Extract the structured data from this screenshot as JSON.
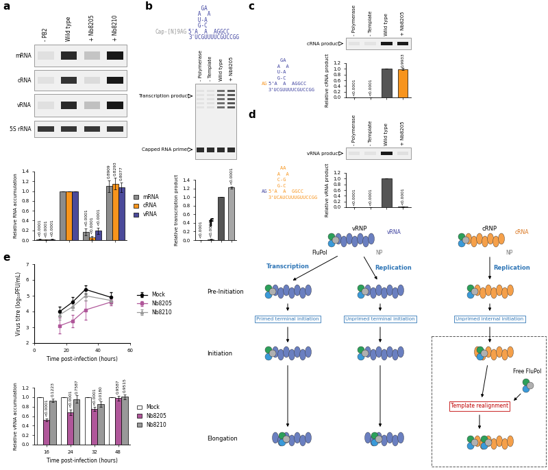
{
  "chart_data": [
    {
      "panel": "a",
      "type": "bar",
      "categories": [
        "- PB2",
        "Wild type",
        "+ Nb8205",
        "+ Nb8210"
      ],
      "gel_rows": [
        "mRNA",
        "cRNA",
        "vRNA",
        "5S rRNA"
      ],
      "ylabel": "Relative RNA accumulation",
      "ylim": [
        0.0,
        1.4
      ],
      "yticks": [
        0.0,
        0.2,
        0.4,
        0.6,
        0.8,
        1.0,
        1.2,
        1.4
      ],
      "tick_labels": "y",
      "legend": "center left",
      "series": [
        {
          "name": "mRNA",
          "color": "#8c8c8c",
          "values": [
            0.02,
            1.0,
            0.17,
            1.1
          ],
          "errors": [
            0.01,
            0.0,
            0.07,
            0.12
          ],
          "p_values": [
            "<0.0001",
            null,
            "<0.0001",
            "0.8909"
          ]
        },
        {
          "name": "cRNA",
          "color": "#f7941d",
          "values": [
            0.01,
            1.0,
            0.05,
            1.15
          ],
          "errors": [
            0.01,
            0.0,
            0.03,
            0.12
          ],
          "p_values": [
            "<0.0001",
            null,
            "<0.0001",
            "0.8293"
          ]
        },
        {
          "name": "vRNA",
          "color": "#4b4a9a",
          "values": [
            0.02,
            1.0,
            0.19,
            1.08
          ],
          "errors": [
            0.01,
            0.0,
            0.06,
            0.1
          ],
          "p_values": [
            "<0.0001",
            null,
            "<0.0001",
            "0.8077"
          ]
        }
      ]
    },
    {
      "panel": "b",
      "type": "bar",
      "categories": [
        "- Polymerase",
        "- Template",
        "Wild type",
        "+ Nb8205"
      ],
      "gel_labels": [
        "Transcription product",
        "Capped RNA primer"
      ],
      "schematic": [
        {
          "text": "    GA",
          "color": "#3b3f9e"
        },
        {
          "text": "   A  A",
          "color": "#3b3f9e"
        },
        {
          "text": "   U-A",
          "color": "#3b3f9e"
        },
        {
          "text": "   G-C",
          "color": "#3b3f9e"
        },
        {
          "text": "5'A  A  AGGCC",
          "color": "#3b3f9e"
        },
        {
          "text": "3'UCGUUUUCGUCCGG",
          "color": "#3b3f9e"
        }
      ],
      "primer": {
        "text": "Cap-[N]9AG",
        "color": "#9a9a9a"
      },
      "ylabel": "Relative transcription product",
      "ylim": [
        0.0,
        1.4
      ],
      "yticks": [
        0.0,
        0.2,
        0.4,
        0.6,
        0.8,
        1.0,
        1.2,
        1.4
      ],
      "tick_labels": "y",
      "values": [
        0.0,
        0.02,
        1.0,
        1.22
      ],
      "errors": [
        0.0,
        0.005,
        0.0,
        0.02
      ],
      "colors": [
        "#555555",
        "#555555",
        "#555555",
        "#a6a6a6"
      ],
      "p_values": [
        "<0.0001",
        "<0.0001",
        null,
        "<0.0001"
      ]
    },
    {
      "panel": "c",
      "type": "bar",
      "categories": [
        "- Polymerase",
        "- Template",
        "Wild type",
        "+ Nb8205"
      ],
      "gel_labels": [
        "cRNA product"
      ],
      "schematic": [
        {
          "text": "    GA",
          "color": "#3b3f9e"
        },
        {
          "text": "   A  A",
          "color": "#3b3f9e"
        },
        {
          "text": "   U-A",
          "color": "#3b3f9e"
        },
        {
          "text": "   G-C",
          "color": "#3b3f9e"
        },
        {
          "text": "5'A  A  AGGCC",
          "color": "#3b3f9e"
        },
        {
          "text": "3'UCGUUUUCGUCCGG",
          "color": "#3b3f9e"
        }
      ],
      "primer": {
        "text": "AG",
        "color": "#f7941d"
      },
      "ylabel": "Relative cRNA product",
      "ylim": [
        0.0,
        1.2
      ],
      "yticks": [
        0.0,
        0.2,
        0.4,
        0.6,
        0.8,
        1.0,
        1.2
      ],
      "tick_labels": "y",
      "values": [
        0.0,
        0.0,
        1.0,
        0.99
      ],
      "errors": [
        0.0,
        0.0,
        0.0,
        0.04
      ],
      "colors": [
        "#555555",
        "#555555",
        "#555555",
        "#f7941d"
      ],
      "p_values": [
        "<0.0001",
        "<0.0001",
        null,
        "0.9933"
      ]
    },
    {
      "panel": "d",
      "type": "bar",
      "categories": [
        "- Polymerase",
        "- Template",
        "Wild type",
        "+ Nb8205"
      ],
      "gel_labels": [
        "vRNA product"
      ],
      "schematic": [
        {
          "text": "    AA",
          "color": "#f7941d"
        },
        {
          "text": "   A  A",
          "color": "#f7941d"
        },
        {
          "text": "   C-G",
          "color": "#f7941d"
        },
        {
          "text": "   G-C",
          "color": "#f7941d"
        },
        {
          "text": "5'A  A  GGCC",
          "color": "#f7941d"
        },
        {
          "text": "3'UCAUCUUUGUUCCGG",
          "color": "#f7941d"
        }
      ],
      "primer": {
        "text": "AG",
        "color": "#3b3f9e"
      },
      "ylabel": "Relative vRNA product",
      "ylim": [
        0.0,
        1.2
      ],
      "yticks": [
        0.0,
        0.2,
        0.4,
        0.6,
        0.8,
        1.0,
        1.2
      ],
      "tick_labels": "y",
      "values": [
        0.0,
        0.0,
        1.0,
        0.02
      ],
      "errors": [
        0.0,
        0.0,
        0.0,
        0.01
      ],
      "colors": [
        "#555555",
        "#555555",
        "#555555",
        "#a6a6a6"
      ],
      "p_values": [
        "<0.0001",
        "<0.0001",
        null,
        "<0.0001"
      ]
    },
    {
      "panel": "e",
      "type": "line",
      "x": [
        16,
        24,
        32,
        48
      ],
      "xlabel": "Time post-infection (hours)",
      "ylabel": "Virus titre (log₁₀PFU/mL)",
      "xlim": [
        0,
        60
      ],
      "xticks": [
        0,
        20,
        40,
        60
      ],
      "ylim": [
        2,
        7
      ],
      "yticks": [
        2,
        3,
        4,
        5,
        6,
        7
      ],
      "legend": "center left",
      "series": [
        {
          "name": "Mock",
          "color": "#000000",
          "marker": "o",
          "values": [
            4.0,
            4.6,
            5.4,
            4.9
          ],
          "errors": [
            0.3,
            0.3,
            0.25,
            0.3
          ]
        },
        {
          "name": "Nb8205",
          "color": "#b0579a",
          "marker": "s",
          "values": [
            3.1,
            3.4,
            4.1,
            4.6
          ],
          "errors": [
            0.5,
            0.4,
            0.6,
            0.2
          ]
        },
        {
          "name": "Nb8210",
          "color": "#999999",
          "marker": "^",
          "values": [
            3.8,
            4.3,
            5.0,
            4.7
          ],
          "errors": [
            0.3,
            0.2,
            0.3,
            0.2
          ]
        }
      ]
    },
    {
      "type": "bar",
      "categories": [
        "16",
        "24",
        "32",
        "48"
      ],
      "xlabel": "Time post-infection (hours)",
      "ylabel": "Relative vRNA accumulation",
      "ylim": [
        0.0,
        1.2
      ],
      "yticks": [
        0.0,
        0.2,
        0.4,
        0.6,
        0.8,
        1.0,
        1.2
      ],
      "legend": "center left",
      "series": [
        {
          "name": "Mock",
          "color": "#ffffff",
          "values": [
            1.0,
            1.0,
            1.0,
            1.0
          ],
          "errors": [
            0.0,
            0.0,
            0.0,
            0.0
          ]
        },
        {
          "name": "Nb8205",
          "color": "#b0579a",
          "values": [
            0.52,
            0.68,
            0.75,
            0.98
          ],
          "errors": [
            0.03,
            0.06,
            0.04,
            0.05
          ],
          "p_values": [
            "<0.0001",
            "<0.0001",
            "<0.0001",
            "0.9587"
          ]
        },
        {
          "name": "Nb8210",
          "color": "#999999",
          "values": [
            0.93,
            0.96,
            0.85,
            1.01
          ],
          "errors": [
            0.04,
            0.08,
            0.06,
            0.05
          ],
          "p_values": [
            "0.1223",
            "0.7587",
            "0.0180",
            "0.9515"
          ]
        }
      ]
    }
  ],
  "diagram": {
    "panel": "f",
    "vrnp": {
      "label": "vRNP",
      "rna": "vRNA",
      "polymerase": "FluPol",
      "np": "NP"
    },
    "crnp": {
      "label": "cRNP",
      "rna": "cRNA",
      "np": "NP"
    },
    "pathways": [
      "Transcription",
      "Replication",
      "Replication"
    ],
    "stages": [
      "Pre-Initiation",
      "Initiation",
      "Elongation"
    ],
    "initiation_modes": [
      "Primed terminal initiation",
      "Unprimed terminal initiation",
      "Unprimed internal initiation"
    ],
    "free_polymerase": "Free FluPol",
    "realignment": "Template realignment"
  }
}
